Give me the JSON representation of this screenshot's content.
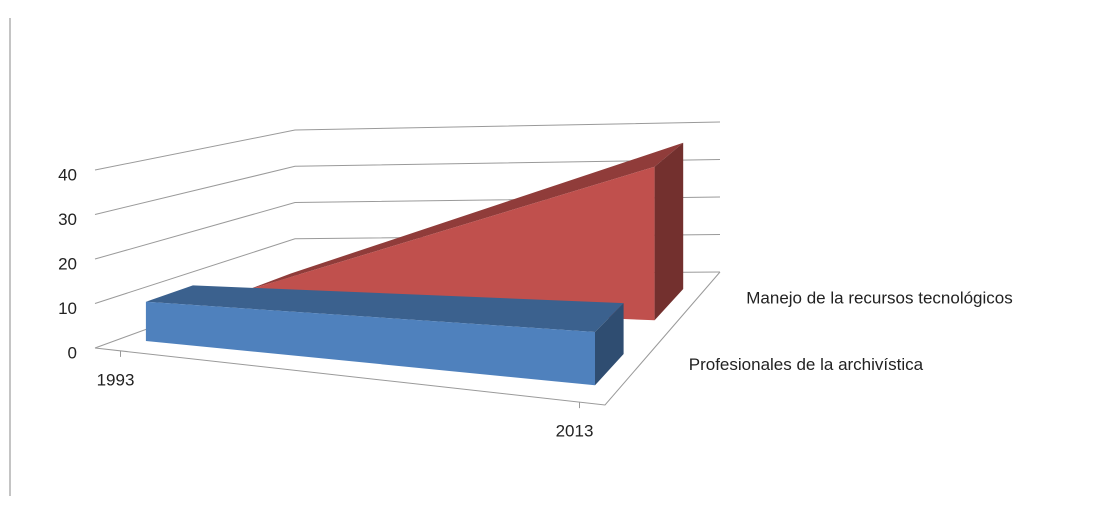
{
  "chart_data": {
    "type": "area3d",
    "categories": [
      "1993",
      "2013"
    ],
    "series": [
      {
        "name": "Profesionales de la archivística",
        "color": "#4f81bd",
        "values": [
          9,
          12
        ]
      },
      {
        "name": "Manejo de la recursos tecnológicos",
        "color": "#c0504d",
        "values": [
          3,
          38
        ]
      }
    ],
    "ylim": [
      0,
      40
    ],
    "yticks": [
      0,
      10,
      20,
      30,
      40
    ],
    "grid": true
  }
}
